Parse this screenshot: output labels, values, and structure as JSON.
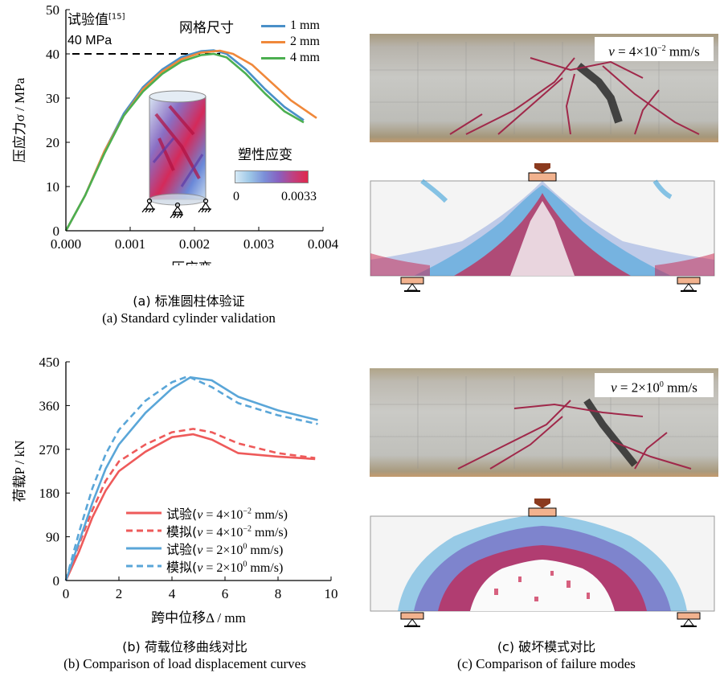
{
  "panel_a": {
    "caption_cn": "(a) 标准圆柱体验证",
    "caption_en": "(a) Standard cylinder validation",
    "test_label": "试验值",
    "test_ref": "[15]",
    "test_value_label": "40 MPa",
    "legend_title": "网格尺寸",
    "legend_entries": [
      "1 mm",
      "2 mm",
      "4 mm"
    ],
    "colorbar_title": "塑性应变",
    "colorbar_min": "0",
    "colorbar_max": "0.0033"
  },
  "panel_b": {
    "caption_cn": "(b) 荷载位移曲线对比",
    "caption_en": "(b) Comparison of load displacement curves",
    "legend_entries": [
      {
        "prefix": "试验(",
        "var": "v",
        "mid": " = 4×10",
        "exp": "−2",
        "suffix": " mm/s)"
      },
      {
        "prefix": "模拟(",
        "var": "v",
        "mid": " = 4×10",
        "exp": "−2",
        "suffix": " mm/s)"
      },
      {
        "prefix": "试验(",
        "var": "v",
        "mid": " = 2×10",
        "exp": "0",
        "suffix": " mm/s)"
      },
      {
        "prefix": "模拟(",
        "var": "v",
        "mid": " = 2×10",
        "exp": "0",
        "suffix": " mm/s)"
      }
    ]
  },
  "panel_c": {
    "caption_cn": "(c) 破坏模式对比",
    "caption_en": "(c) Comparison of failure modes",
    "label_top": {
      "var": "v",
      "mid": " = 4×10",
      "exp": "−2",
      "suffix": " mm/s"
    },
    "label_bottom": {
      "var": "v",
      "mid": " = 2×10",
      "exp": "0",
      "suffix": " mm/s"
    }
  },
  "colors": {
    "blue": "#4a90c8",
    "orange": "#f0883a",
    "green": "#4caf50",
    "red": "#ee5a5a",
    "lightblue": "#5aa6d8"
  },
  "chart_data": [
    {
      "type": "line",
      "xlabel": "压应变ε",
      "ylabel": "压应力σ / MPa",
      "xlim": [
        0,
        0.004
      ],
      "ylim": [
        0,
        50
      ],
      "xticks": [
        "0.000",
        "0.001",
        "0.002",
        "0.003",
        "0.004"
      ],
      "yticks": [
        "0",
        "10",
        "20",
        "30",
        "40",
        "50"
      ],
      "reference_line": {
        "y": 40
      },
      "series": [
        {
          "name": "1 mm",
          "color": "#4a90c8",
          "x": [
            0,
            0.0003,
            0.0006,
            0.0009,
            0.0012,
            0.0015,
            0.0018,
            0.0021,
            0.0023,
            0.0025,
            0.0028,
            0.0031,
            0.0034,
            0.0037
          ],
          "y": [
            0,
            8,
            18,
            26.5,
            32.5,
            36.5,
            39.3,
            40.6,
            40.8,
            40,
            36.5,
            32,
            28,
            25
          ]
        },
        {
          "name": "2 mm",
          "color": "#f0883a",
          "x": [
            0,
            0.0003,
            0.0006,
            0.0009,
            0.0012,
            0.0015,
            0.0018,
            0.0021,
            0.0024,
            0.0026,
            0.0029,
            0.0032,
            0.0035,
            0.0039
          ],
          "y": [
            0,
            8,
            18,
            26,
            32,
            36,
            38.8,
            40.3,
            40.7,
            40,
            37.5,
            33.5,
            29.5,
            25.5
          ]
        },
        {
          "name": "4 mm",
          "color": "#4caf50",
          "x": [
            0,
            0.0003,
            0.0006,
            0.0009,
            0.0012,
            0.0015,
            0.0018,
            0.0021,
            0.0023,
            0.0025,
            0.0028,
            0.0031,
            0.0034,
            0.0037
          ],
          "y": [
            0,
            8,
            17.5,
            26,
            31.5,
            35.5,
            38.3,
            39.7,
            40,
            39.2,
            35.5,
            31,
            27,
            24.5
          ]
        }
      ]
    },
    {
      "type": "line",
      "xlabel": "跨中位移Δ / mm",
      "ylabel": "荷载P / kN",
      "xlim": [
        0,
        10
      ],
      "ylim": [
        0,
        450
      ],
      "xticks": [
        "0",
        "2",
        "4",
        "6",
        "8",
        "10"
      ],
      "yticks": [
        "0",
        "90",
        "180",
        "270",
        "360",
        "450"
      ],
      "series": [
        {
          "name": "试验(v = 4×10⁻² mm/s)",
          "color": "#ee5a5a",
          "dash": false,
          "x": [
            0,
            0.5,
            1,
            1.5,
            2,
            3,
            4,
            4.8,
            5.5,
            6.5,
            8,
            9.4
          ],
          "y": [
            0,
            60,
            130,
            185,
            225,
            265,
            295,
            301,
            290,
            262,
            255,
            250
          ]
        },
        {
          "name": "模拟(v = 4×10⁻² mm/s)",
          "color": "#ee5a5a",
          "dash": true,
          "x": [
            0,
            0.5,
            1,
            1.5,
            2,
            3,
            4,
            4.8,
            5.5,
            6.5,
            8,
            9.4
          ],
          "y": [
            0,
            75,
            145,
            205,
            245,
            280,
            305,
            312,
            305,
            282,
            262,
            252
          ]
        },
        {
          "name": "试验(v = 2×10⁰ mm/s)",
          "color": "#5aa6d8",
          "dash": false,
          "x": [
            0,
            0.5,
            1,
            1.5,
            2,
            3,
            4,
            4.7,
            5.5,
            6.5,
            8,
            9.5
          ],
          "y": [
            0,
            80,
            160,
            230,
            280,
            345,
            395,
            418,
            412,
            378,
            350,
            330
          ]
        },
        {
          "name": "模拟(v = 2×10⁰ mm/s)",
          "color": "#5aa6d8",
          "dash": true,
          "x": [
            0,
            0.5,
            1,
            1.5,
            2,
            3,
            4,
            4.6,
            5.5,
            6.5,
            8,
            9.5
          ],
          "y": [
            0,
            100,
            190,
            260,
            310,
            370,
            408,
            420,
            398,
            365,
            340,
            322
          ]
        }
      ]
    }
  ]
}
